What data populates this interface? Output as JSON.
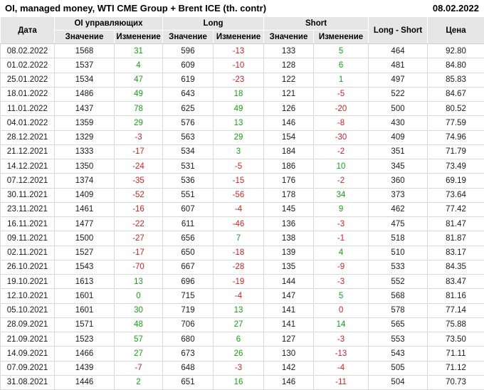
{
  "title": "OI, managed money, WTI CME Group + Brent ICE (th. contr)",
  "report_date": "08.02.2022",
  "colors": {
    "positive_change": "#18A018",
    "negative_change": "#CC2222",
    "header_background": "#E6E6E6",
    "grid_line": "#D9D9D9",
    "text": "#1A1A1A"
  },
  "table": {
    "headers": {
      "date": "Дата",
      "oi_group": "OI управляющих",
      "long_group": "Long",
      "short_group": "Short",
      "long_short": "Long - Short",
      "price": "Цена",
      "value": "Значение",
      "change": "Изменение"
    },
    "rows": [
      [
        "08.02.2022",
        "1568",
        {
          "v": "31",
          "c": "pos"
        },
        "596",
        {
          "v": "-13",
          "c": "neg"
        },
        "133",
        {
          "v": "5",
          "c": "pos"
        },
        "464",
        "92.80"
      ],
      [
        "01.02.2022",
        "1537",
        {
          "v": "4",
          "c": "pos"
        },
        "609",
        {
          "v": "-10",
          "c": "neg"
        },
        "128",
        {
          "v": "6",
          "c": "pos"
        },
        "481",
        "84.80"
      ],
      [
        "25.01.2022",
        "1534",
        {
          "v": "47",
          "c": "pos"
        },
        "619",
        {
          "v": "-23",
          "c": "neg"
        },
        "122",
        {
          "v": "1",
          "c": "pos"
        },
        "497",
        "85.83"
      ],
      [
        "18.01.2022",
        "1486",
        {
          "v": "49",
          "c": "pos"
        },
        "643",
        {
          "v": "18",
          "c": "pos"
        },
        "121",
        {
          "v": "-5",
          "c": "neg"
        },
        "522",
        "84.67"
      ],
      [
        "11.01.2022",
        "1437",
        {
          "v": "78",
          "c": "pos"
        },
        "625",
        {
          "v": "49",
          "c": "pos"
        },
        "126",
        {
          "v": "-20",
          "c": "neg"
        },
        "500",
        "80.52"
      ],
      [
        "04.01.2022",
        "1359",
        {
          "v": "29",
          "c": "pos"
        },
        "576",
        {
          "v": "13",
          "c": "pos"
        },
        "146",
        {
          "v": "-8",
          "c": "neg"
        },
        "430",
        "77.59"
      ],
      [
        "28.12.2021",
        "1329",
        {
          "v": "-3",
          "c": "neg"
        },
        "563",
        {
          "v": "29",
          "c": "pos"
        },
        "154",
        {
          "v": "-30",
          "c": "neg"
        },
        "409",
        "74.96"
      ],
      [
        "21.12.2021",
        "1333",
        {
          "v": "-17",
          "c": "neg"
        },
        "534",
        {
          "v": "3",
          "c": "pos"
        },
        "184",
        {
          "v": "-2",
          "c": "neg"
        },
        "351",
        "71.79"
      ],
      [
        "14.12.2021",
        "1350",
        {
          "v": "-24",
          "c": "neg"
        },
        "531",
        {
          "v": "-5",
          "c": "neg"
        },
        "186",
        {
          "v": "10",
          "c": "pos"
        },
        "345",
        "73.49"
      ],
      [
        "07.12.2021",
        "1374",
        {
          "v": "-35",
          "c": "neg"
        },
        "536",
        {
          "v": "-15",
          "c": "neg"
        },
        "176",
        {
          "v": "-2",
          "c": "neg"
        },
        "360",
        "69.19"
      ],
      [
        "30.11.2021",
        "1409",
        {
          "v": "-52",
          "c": "neg"
        },
        "551",
        {
          "v": "-56",
          "c": "neg"
        },
        "178",
        {
          "v": "34",
          "c": "pos"
        },
        "373",
        "73.64"
      ],
      [
        "23.11.2021",
        "1461",
        {
          "v": "-16",
          "c": "neg"
        },
        "607",
        {
          "v": "-4",
          "c": "neg"
        },
        "145",
        {
          "v": "9",
          "c": "pos"
        },
        "462",
        "77.42"
      ],
      [
        "16.11.2021",
        "1477",
        {
          "v": "-22",
          "c": "neg"
        },
        "611",
        {
          "v": "-46",
          "c": "neg"
        },
        "136",
        {
          "v": "-3",
          "c": "neg"
        },
        "475",
        "81.47"
      ],
      [
        "09.11.2021",
        "1500",
        {
          "v": "-27",
          "c": "neg"
        },
        "656",
        {
          "v": "7",
          "c": "pos"
        },
        "138",
        {
          "v": "-1",
          "c": "neg"
        },
        "518",
        "81.87"
      ],
      [
        "02.11.2021",
        "1527",
        {
          "v": "-17",
          "c": "neg"
        },
        "650",
        {
          "v": "-18",
          "c": "neg"
        },
        "139",
        {
          "v": "4",
          "c": "pos"
        },
        "510",
        "83.17"
      ],
      [
        "26.10.2021",
        "1543",
        {
          "v": "-70",
          "c": "neg"
        },
        "667",
        {
          "v": "-28",
          "c": "neg"
        },
        "135",
        {
          "v": "-9",
          "c": "neg"
        },
        "533",
        "84.35"
      ],
      [
        "19.10.2021",
        "1613",
        {
          "v": "13",
          "c": "pos"
        },
        "696",
        {
          "v": "-19",
          "c": "neg"
        },
        "144",
        {
          "v": "-3",
          "c": "neg"
        },
        "552",
        "83.47"
      ],
      [
        "12.10.2021",
        "1601",
        {
          "v": "0",
          "c": "pos"
        },
        "715",
        {
          "v": "-4",
          "c": "neg"
        },
        "147",
        {
          "v": "5",
          "c": "pos"
        },
        "568",
        "81.16"
      ],
      [
        "05.10.2021",
        "1601",
        {
          "v": "30",
          "c": "pos"
        },
        "719",
        {
          "v": "13",
          "c": "pos"
        },
        "141",
        {
          "v": "0",
          "c": "neg"
        },
        "578",
        "77.14"
      ],
      [
        "28.09.2021",
        "1571",
        {
          "v": "48",
          "c": "pos"
        },
        "706",
        {
          "v": "27",
          "c": "pos"
        },
        "141",
        {
          "v": "14",
          "c": "pos"
        },
        "565",
        "75.88"
      ],
      [
        "21.09.2021",
        "1523",
        {
          "v": "57",
          "c": "pos"
        },
        "680",
        {
          "v": "6",
          "c": "pos"
        },
        "127",
        {
          "v": "-3",
          "c": "neg"
        },
        "553",
        "73.50"
      ],
      [
        "14.09.2021",
        "1466",
        {
          "v": "27",
          "c": "pos"
        },
        "673",
        {
          "v": "26",
          "c": "pos"
        },
        "130",
        {
          "v": "-13",
          "c": "neg"
        },
        "543",
        "71.11"
      ],
      [
        "07.09.2021",
        "1439",
        {
          "v": "-7",
          "c": "neg"
        },
        "648",
        {
          "v": "-3",
          "c": "neg"
        },
        "142",
        {
          "v": "-4",
          "c": "neg"
        },
        "505",
        "71.12"
      ],
      [
        "31.08.2021",
        "1446",
        {
          "v": "2",
          "c": "pos"
        },
        "651",
        {
          "v": "16",
          "c": "pos"
        },
        "146",
        {
          "v": "-11",
          "c": "neg"
        },
        "504",
        "70.73"
      ]
    ]
  }
}
